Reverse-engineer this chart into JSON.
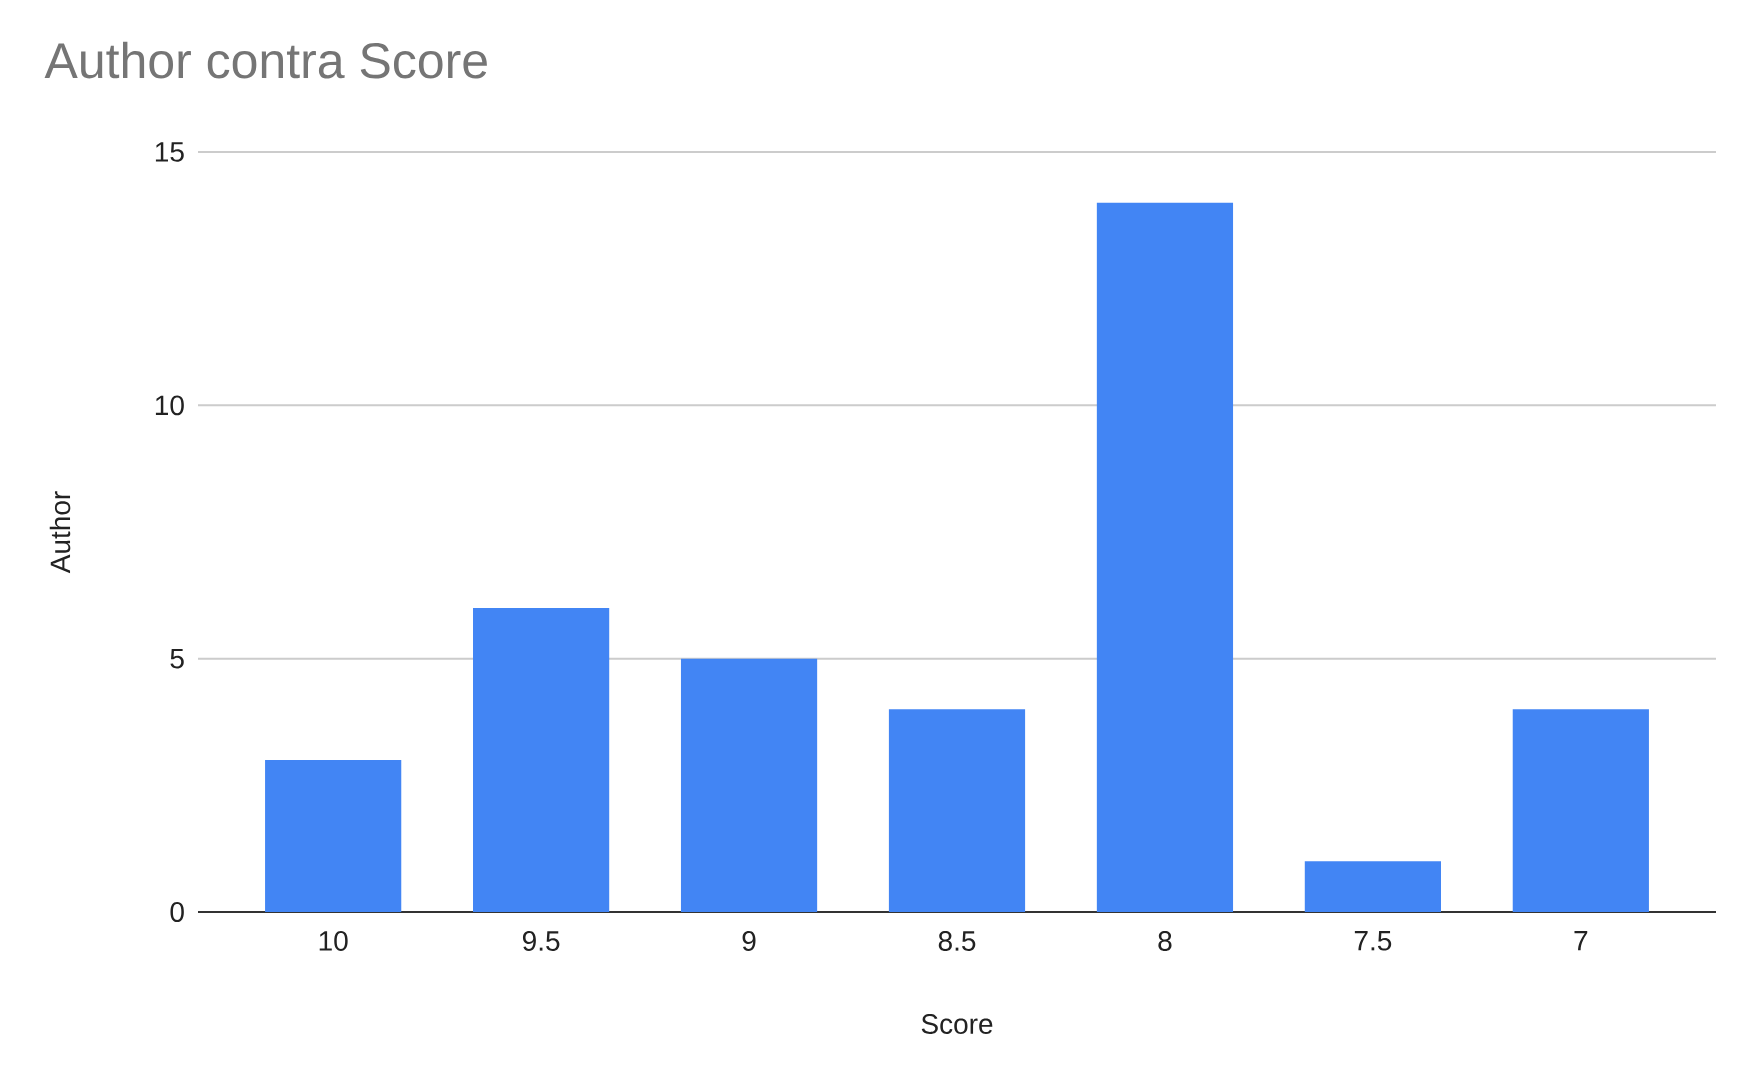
{
  "chart_data": {
    "type": "bar",
    "title": "Author contra Score",
    "xlabel": "Score",
    "ylabel": "Author",
    "categories": [
      "10",
      "9.5",
      "9",
      "8.5",
      "8",
      "7.5",
      "7"
    ],
    "values": [
      3,
      6,
      5,
      4,
      14,
      1,
      4
    ],
    "color": "#4285f4",
    "ylim": [
      0,
      15
    ],
    "yticks": [
      0,
      5,
      10,
      15
    ],
    "grid": "y"
  }
}
